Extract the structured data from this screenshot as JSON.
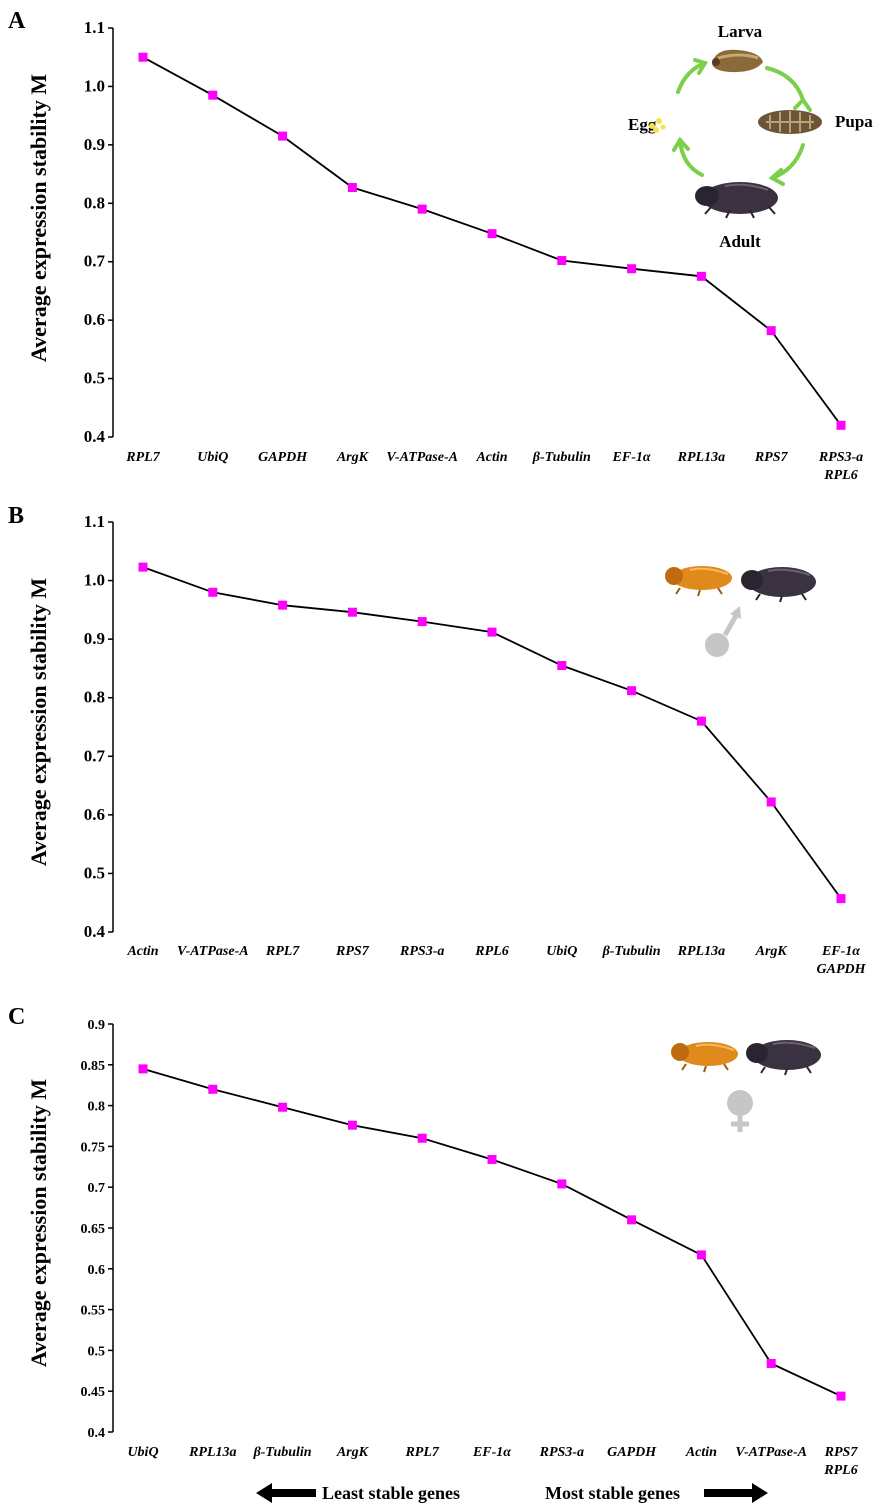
{
  "colors": {
    "line": "#000000",
    "marker": "#ff00ff",
    "arrow_green": "#7ccf4a",
    "symbol_gray": "#c6c6c6"
  },
  "chart_data": [
    {
      "type": "line",
      "panel_label": "A",
      "ylabel": "Average expression stability M",
      "ylim": [
        0.4,
        1.1
      ],
      "yticks": [
        "0.4",
        "0.5",
        "0.6",
        "0.7",
        "0.8",
        "0.9",
        "1.0",
        "1.1"
      ],
      "categories": [
        [
          "RPL7"
        ],
        [
          "UbiQ"
        ],
        [
          "GAPDH"
        ],
        [
          "ArgK"
        ],
        [
          "V-ATPase-A"
        ],
        [
          "Actin"
        ],
        [
          "β-Tubulin"
        ],
        [
          "EF-1α"
        ],
        [
          "RPL13a"
        ],
        [
          "RPS7"
        ],
        [
          "RPS3-a",
          "RPL6"
        ]
      ],
      "values": [
        1.05,
        0.985,
        0.915,
        0.827,
        0.79,
        0.748,
        0.702,
        0.688,
        0.675,
        0.582,
        0.42
      ],
      "inset": {
        "type": "life-cycle",
        "labels": {
          "larva": "Larva",
          "pupa": "Pupa",
          "adult": "Adult",
          "egg": "Egg"
        }
      }
    },
    {
      "type": "line",
      "panel_label": "B",
      "ylabel": "Average expression stability M",
      "ylim": [
        0.4,
        1.1
      ],
      "yticks": [
        "0.4",
        "0.5",
        "0.6",
        "0.7",
        "0.8",
        "0.9",
        "1.0",
        "1.1"
      ],
      "categories": [
        [
          "Actin"
        ],
        [
          "V-ATPase-A"
        ],
        [
          "RPL7"
        ],
        [
          "RPS7"
        ],
        [
          "RPS3-a"
        ],
        [
          "RPL6"
        ],
        [
          "UbiQ"
        ],
        [
          "β-Tubulin"
        ],
        [
          "RPL13a"
        ],
        [
          "ArgK"
        ],
        [
          "EF-1α",
          "GAPDH"
        ]
      ],
      "values": [
        1.023,
        0.98,
        0.958,
        0.946,
        0.93,
        0.912,
        0.855,
        0.812,
        0.76,
        0.622,
        0.457
      ],
      "inset": {
        "type": "male-beetles",
        "symbol": "male"
      }
    },
    {
      "type": "line",
      "panel_label": "C",
      "ylabel": "Average expression stability M",
      "ylim": [
        0.4,
        0.9
      ],
      "yticks": [
        "0.4",
        "0.45",
        "0.5",
        "0.55",
        "0.6",
        "0.65",
        "0.7",
        "0.75",
        "0.8",
        "0.85",
        "0.9"
      ],
      "categories": [
        [
          "UbiQ"
        ],
        [
          "RPL13a"
        ],
        [
          "β-Tubulin"
        ],
        [
          "ArgK"
        ],
        [
          "RPL7"
        ],
        [
          "EF-1α"
        ],
        [
          "RPS3-a"
        ],
        [
          "GAPDH"
        ],
        [
          "Actin"
        ],
        [
          "V-ATPase-A"
        ],
        [
          "RPS7",
          "RPL6"
        ]
      ],
      "values": [
        0.845,
        0.82,
        0.798,
        0.776,
        0.76,
        0.734,
        0.704,
        0.66,
        0.617,
        0.484,
        0.444
      ],
      "inset": {
        "type": "female-beetles",
        "symbol": "female"
      }
    }
  ],
  "legend": {
    "least": "Least stable genes",
    "most": "Most stable genes"
  }
}
